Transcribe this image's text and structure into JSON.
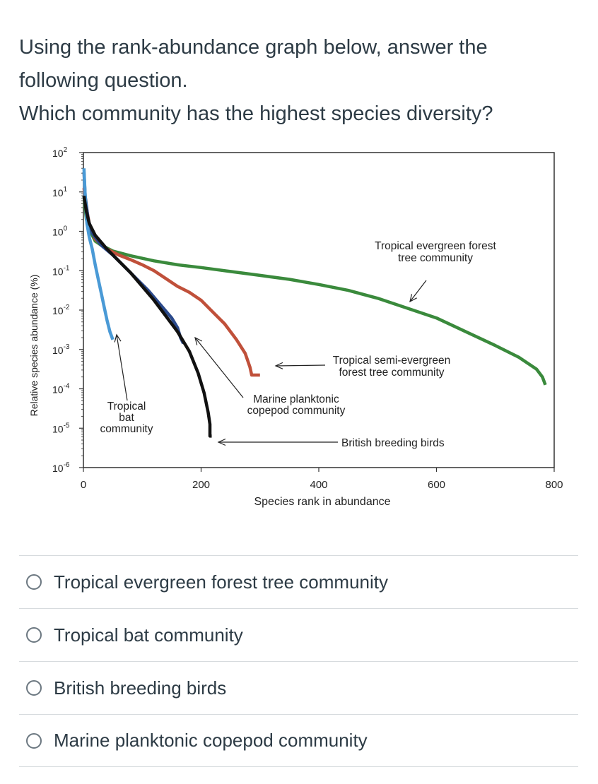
{
  "question": {
    "line1": "Using the rank-abundance graph below, answer the following question.",
    "line2": "Which community has the highest species diversity?"
  },
  "options": [
    {
      "label": "Tropical evergreen forest tree community"
    },
    {
      "label": "Tropical bat community"
    },
    {
      "label": "British breeding birds"
    },
    {
      "label": "Marine planktonic copepod community"
    }
  ],
  "colors": {
    "evergreen": "#3a8a3c",
    "semi_evergreen": "#c0503a",
    "copepod": "#2b4a8c",
    "bat": "#4a9ad6",
    "birds": "#111111",
    "axis": "#333333"
  },
  "chart_data": {
    "type": "line",
    "title": "",
    "xlabel": "Species rank in abundance",
    "ylabel": "Relative species abundance (%)",
    "xlim": [
      0,
      800
    ],
    "ylim_log10": [
      -6,
      2
    ],
    "x_ticks": [
      {
        "value": 0,
        "label": "0"
      },
      {
        "value": 200,
        "label": "200"
      },
      {
        "value": 400,
        "label": "400"
      },
      {
        "value": 600,
        "label": "600"
      },
      {
        "value": 800,
        "label": "800"
      }
    ],
    "y_ticks": [
      {
        "exp": 2,
        "base": "10",
        "sup": "2"
      },
      {
        "exp": 1,
        "base": "10",
        "sup": "1"
      },
      {
        "exp": 0,
        "base": "10",
        "sup": "0"
      },
      {
        "exp": -1,
        "base": "10",
        "sup": "-1"
      },
      {
        "exp": -2,
        "base": "10",
        "sup": "-2"
      },
      {
        "exp": -3,
        "base": "10",
        "sup": "-3"
      },
      {
        "exp": -4,
        "base": "10",
        "sup": "-4"
      },
      {
        "exp": -5,
        "base": "10",
        "sup": "-5"
      },
      {
        "exp": -6,
        "base": "10",
        "sup": "-6"
      }
    ],
    "series": [
      {
        "key": "evergreen",
        "name": "Tropical evergreen forest tree community",
        "points": [
          [
            1,
            0.9
          ],
          [
            5,
            0.3
          ],
          [
            10,
            0.05
          ],
          [
            20,
            -0.25
          ],
          [
            30,
            -0.35
          ],
          [
            50,
            -0.5
          ],
          [
            80,
            -0.62
          ],
          [
            120,
            -0.75
          ],
          [
            160,
            -0.85
          ],
          [
            200,
            -0.92
          ],
          [
            250,
            -1.02
          ],
          [
            300,
            -1.12
          ],
          [
            350,
            -1.22
          ],
          [
            400,
            -1.35
          ],
          [
            450,
            -1.5
          ],
          [
            500,
            -1.7
          ],
          [
            550,
            -1.95
          ],
          [
            600,
            -2.2
          ],
          [
            650,
            -2.55
          ],
          [
            700,
            -2.9
          ],
          [
            740,
            -3.2
          ],
          [
            770,
            -3.5
          ],
          [
            780,
            -3.7
          ],
          [
            785,
            -3.9
          ]
        ]
      },
      {
        "key": "semi_evergreen",
        "name": "Tropical semi-evergreen forest tree community",
        "points": [
          [
            1,
            1.1
          ],
          [
            5,
            0.6
          ],
          [
            10,
            0.2
          ],
          [
            20,
            -0.2
          ],
          [
            40,
            -0.45
          ],
          [
            60,
            -0.6
          ],
          [
            80,
            -0.72
          ],
          [
            100,
            -0.85
          ],
          [
            120,
            -1.0
          ],
          [
            140,
            -1.2
          ],
          [
            160,
            -1.4
          ],
          [
            180,
            -1.55
          ],
          [
            200,
            -1.75
          ],
          [
            220,
            -2.05
          ],
          [
            240,
            -2.35
          ],
          [
            260,
            -2.75
          ],
          [
            275,
            -3.1
          ],
          [
            283,
            -3.45
          ],
          [
            286,
            -3.65
          ],
          [
            300,
            -3.65
          ]
        ]
      },
      {
        "key": "copepod",
        "name": "Marine planktonic copepod community",
        "points": [
          [
            1,
            1.5
          ],
          [
            3,
            0.9
          ],
          [
            8,
            0.3
          ],
          [
            15,
            -0.05
          ],
          [
            30,
            -0.35
          ],
          [
            50,
            -0.6
          ],
          [
            70,
            -0.9
          ],
          [
            90,
            -1.2
          ],
          [
            110,
            -1.5
          ],
          [
            130,
            -1.85
          ],
          [
            150,
            -2.2
          ],
          [
            160,
            -2.45
          ],
          [
            165,
            -2.7
          ],
          [
            170,
            -2.85
          ]
        ]
      },
      {
        "key": "bat",
        "name": "Tropical bat community",
        "points": [
          [
            1,
            1.6
          ],
          [
            3,
            0.9
          ],
          [
            6,
            0.2
          ],
          [
            10,
            -0.15
          ],
          [
            15,
            -0.45
          ],
          [
            20,
            -0.85
          ],
          [
            25,
            -1.2
          ],
          [
            30,
            -1.55
          ],
          [
            35,
            -1.9
          ],
          [
            40,
            -2.25
          ],
          [
            45,
            -2.55
          ],
          [
            50,
            -2.75
          ]
        ]
      },
      {
        "key": "birds",
        "name": "British breeding birds",
        "points": [
          [
            1,
            0.9
          ],
          [
            5,
            0.5
          ],
          [
            10,
            0.2
          ],
          [
            20,
            -0.1
          ],
          [
            40,
            -0.45
          ],
          [
            60,
            -0.75
          ],
          [
            80,
            -1.05
          ],
          [
            100,
            -1.4
          ],
          [
            120,
            -1.75
          ],
          [
            140,
            -2.15
          ],
          [
            160,
            -2.55
          ],
          [
            180,
            -3.05
          ],
          [
            195,
            -3.6
          ],
          [
            205,
            -4.1
          ],
          [
            212,
            -4.6
          ],
          [
            215,
            -4.9
          ],
          [
            215,
            -5.2
          ],
          [
            218,
            -5.2
          ]
        ]
      }
    ],
    "annotations": [
      {
        "key": "evergreen",
        "lines": [
          "Tropical evergreen forest",
          "tree community"
        ]
      },
      {
        "key": "semi_evergreen",
        "lines": [
          "Tropical semi-evergreen",
          "forest tree community"
        ]
      },
      {
        "key": "copepod",
        "lines": [
          "Marine planktonic",
          "copepod community"
        ]
      },
      {
        "key": "bat",
        "lines": [
          "Tropical",
          "bat",
          "community"
        ]
      },
      {
        "key": "birds",
        "lines": [
          "British breeding birds"
        ]
      }
    ]
  }
}
